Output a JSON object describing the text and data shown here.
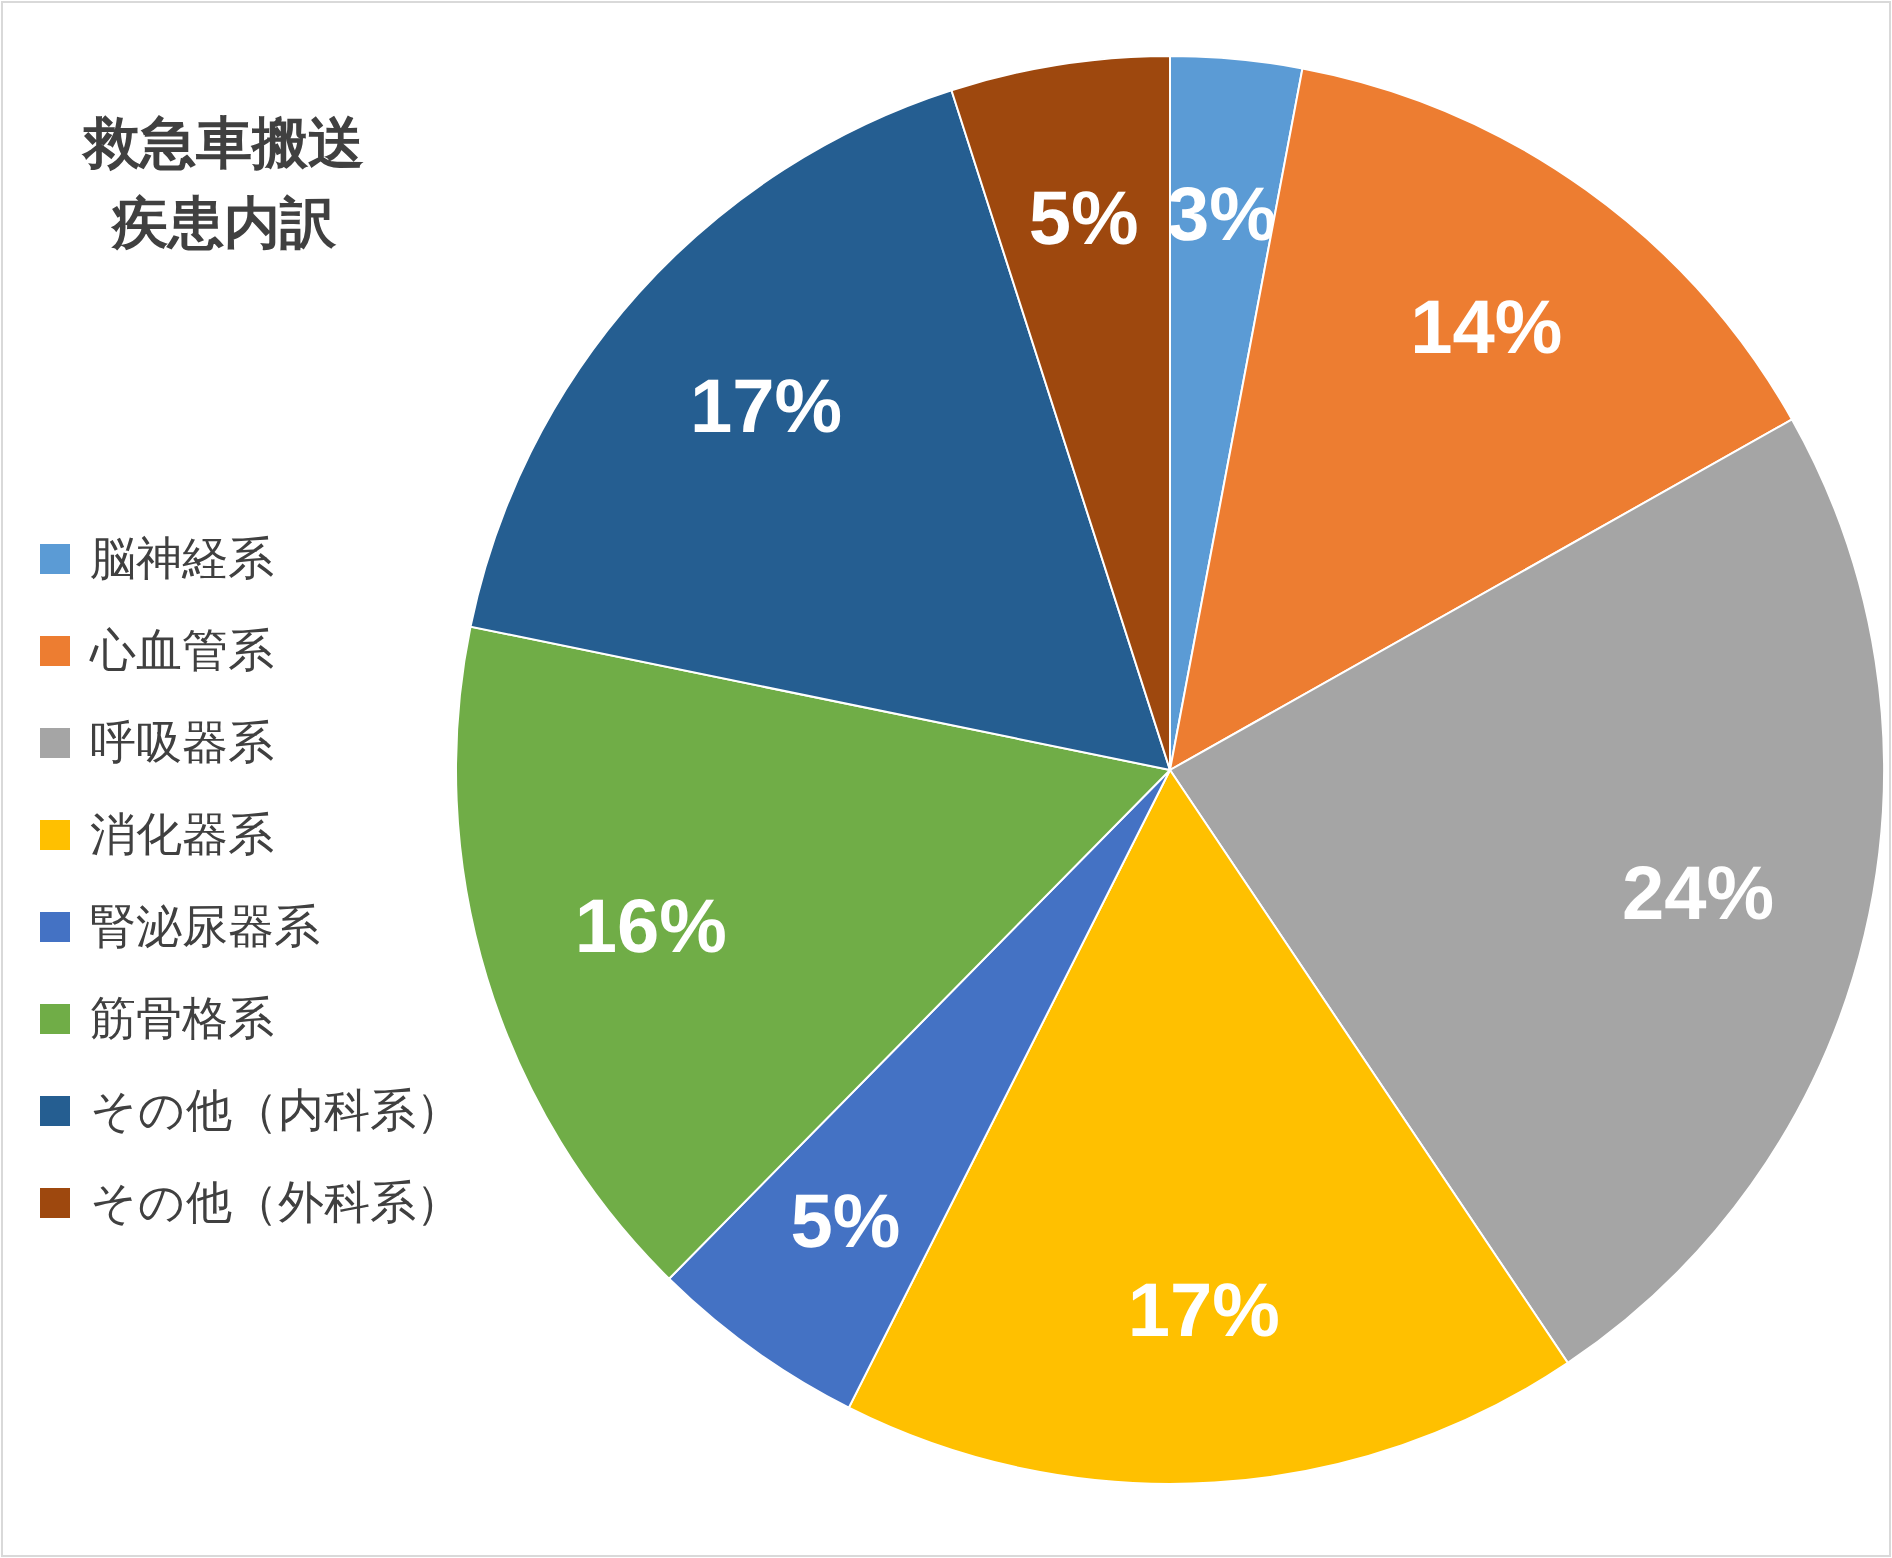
{
  "chart_data": {
    "type": "pie",
    "title": "救急車搬送疾患内訳",
    "categories": [
      "脳神経系",
      "心血管系",
      "呼吸器系",
      "消化器系",
      "腎泌尿器系",
      "筋骨格系",
      "その他（内科系）",
      "その他（外科系）"
    ],
    "values": [
      3,
      14,
      24,
      17,
      5,
      16,
      17,
      5
    ],
    "colors": [
      "#5b9bd5",
      "#ed7d31",
      "#a5a5a5",
      "#ffc000",
      "#4472c4",
      "#70ad47",
      "#255e91",
      "#9e480e"
    ],
    "value_labels": [
      "3%",
      "14%",
      "24%",
      "17%",
      "5%",
      "16%",
      "17%",
      "5%"
    ],
    "legend": "left"
  }
}
